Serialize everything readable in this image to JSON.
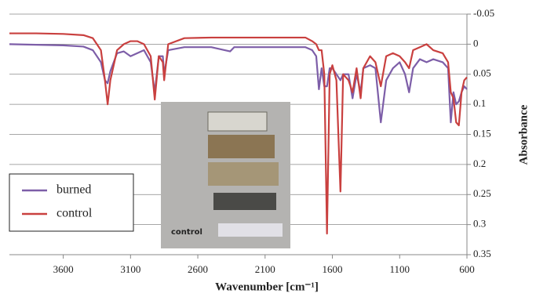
{
  "chart_data": {
    "type": "line",
    "x_label": "Wavenumber [cm⁻¹]",
    "y_label": "Absorbance",
    "inset_label": "control",
    "x": [
      4000,
      3800,
      3600,
      3450,
      3380,
      3320,
      3290,
      3270,
      3250,
      3200,
      3150,
      3100,
      3050,
      3000,
      2950,
      2920,
      2890,
      2860,
      2850,
      2820,
      2700,
      2500,
      2360,
      2330,
      2000,
      1800,
      1750,
      1720,
      1700,
      1680,
      1660,
      1640,
      1620,
      1600,
      1570,
      1540,
      1520,
      1480,
      1450,
      1420,
      1390,
      1370,
      1320,
      1280,
      1240,
      1200,
      1150,
      1100,
      1060,
      1030,
      1000,
      950,
      900,
      850,
      780,
      740,
      720,
      700,
      680,
      660,
      640,
      620,
      600
    ],
    "series": [
      {
        "name": "burned",
        "color": "#7d5ea8",
        "values": [
          0.0,
          0.001,
          0.002,
          0.004,
          0.01,
          0.03,
          0.06,
          0.065,
          0.045,
          0.015,
          0.012,
          0.02,
          0.015,
          0.01,
          0.03,
          0.08,
          0.02,
          0.02,
          0.05,
          0.01,
          0.005,
          0.005,
          0.012,
          0.005,
          0.005,
          0.005,
          0.01,
          0.02,
          0.075,
          0.04,
          0.07,
          0.07,
          0.04,
          0.04,
          0.05,
          0.06,
          0.05,
          0.05,
          0.09,
          0.05,
          0.08,
          0.04,
          0.035,
          0.04,
          0.13,
          0.06,
          0.04,
          0.03,
          0.05,
          0.08,
          0.04,
          0.025,
          0.03,
          0.025,
          0.03,
          0.04,
          0.13,
          0.08,
          0.1,
          0.095,
          0.08,
          0.07,
          0.075
        ]
      },
      {
        "name": "control",
        "color": "#c9403f",
        "values": [
          -0.018,
          -0.018,
          -0.017,
          -0.015,
          -0.01,
          0.01,
          0.06,
          0.1,
          0.06,
          0.01,
          0.0,
          -0.005,
          -0.005,
          0.0,
          0.02,
          0.092,
          0.02,
          0.03,
          0.06,
          0.0,
          -0.01,
          -0.011,
          -0.011,
          -0.011,
          -0.011,
          -0.011,
          -0.005,
          0.0,
          0.01,
          0.01,
          0.05,
          0.315,
          0.05,
          0.035,
          0.06,
          0.245,
          0.05,
          0.06,
          0.08,
          0.04,
          0.09,
          0.04,
          0.02,
          0.03,
          0.07,
          0.02,
          0.015,
          0.02,
          0.03,
          0.04,
          0.01,
          0.005,
          0.0,
          0.01,
          0.015,
          0.03,
          0.08,
          0.09,
          0.13,
          0.135,
          0.08,
          0.06,
          0.055
        ]
      }
    ],
    "xlim": [
      4000,
      600
    ],
    "xticks": [
      3600,
      3100,
      2600,
      2100,
      1600,
      1100,
      600
    ],
    "ylim": [
      -0.05,
      0.35
    ],
    "yticks": [
      -0.05,
      0,
      0.05,
      0.1,
      0.15,
      0.2,
      0.25,
      0.3,
      0.35
    ],
    "grid": true,
    "legend": "lower left"
  }
}
